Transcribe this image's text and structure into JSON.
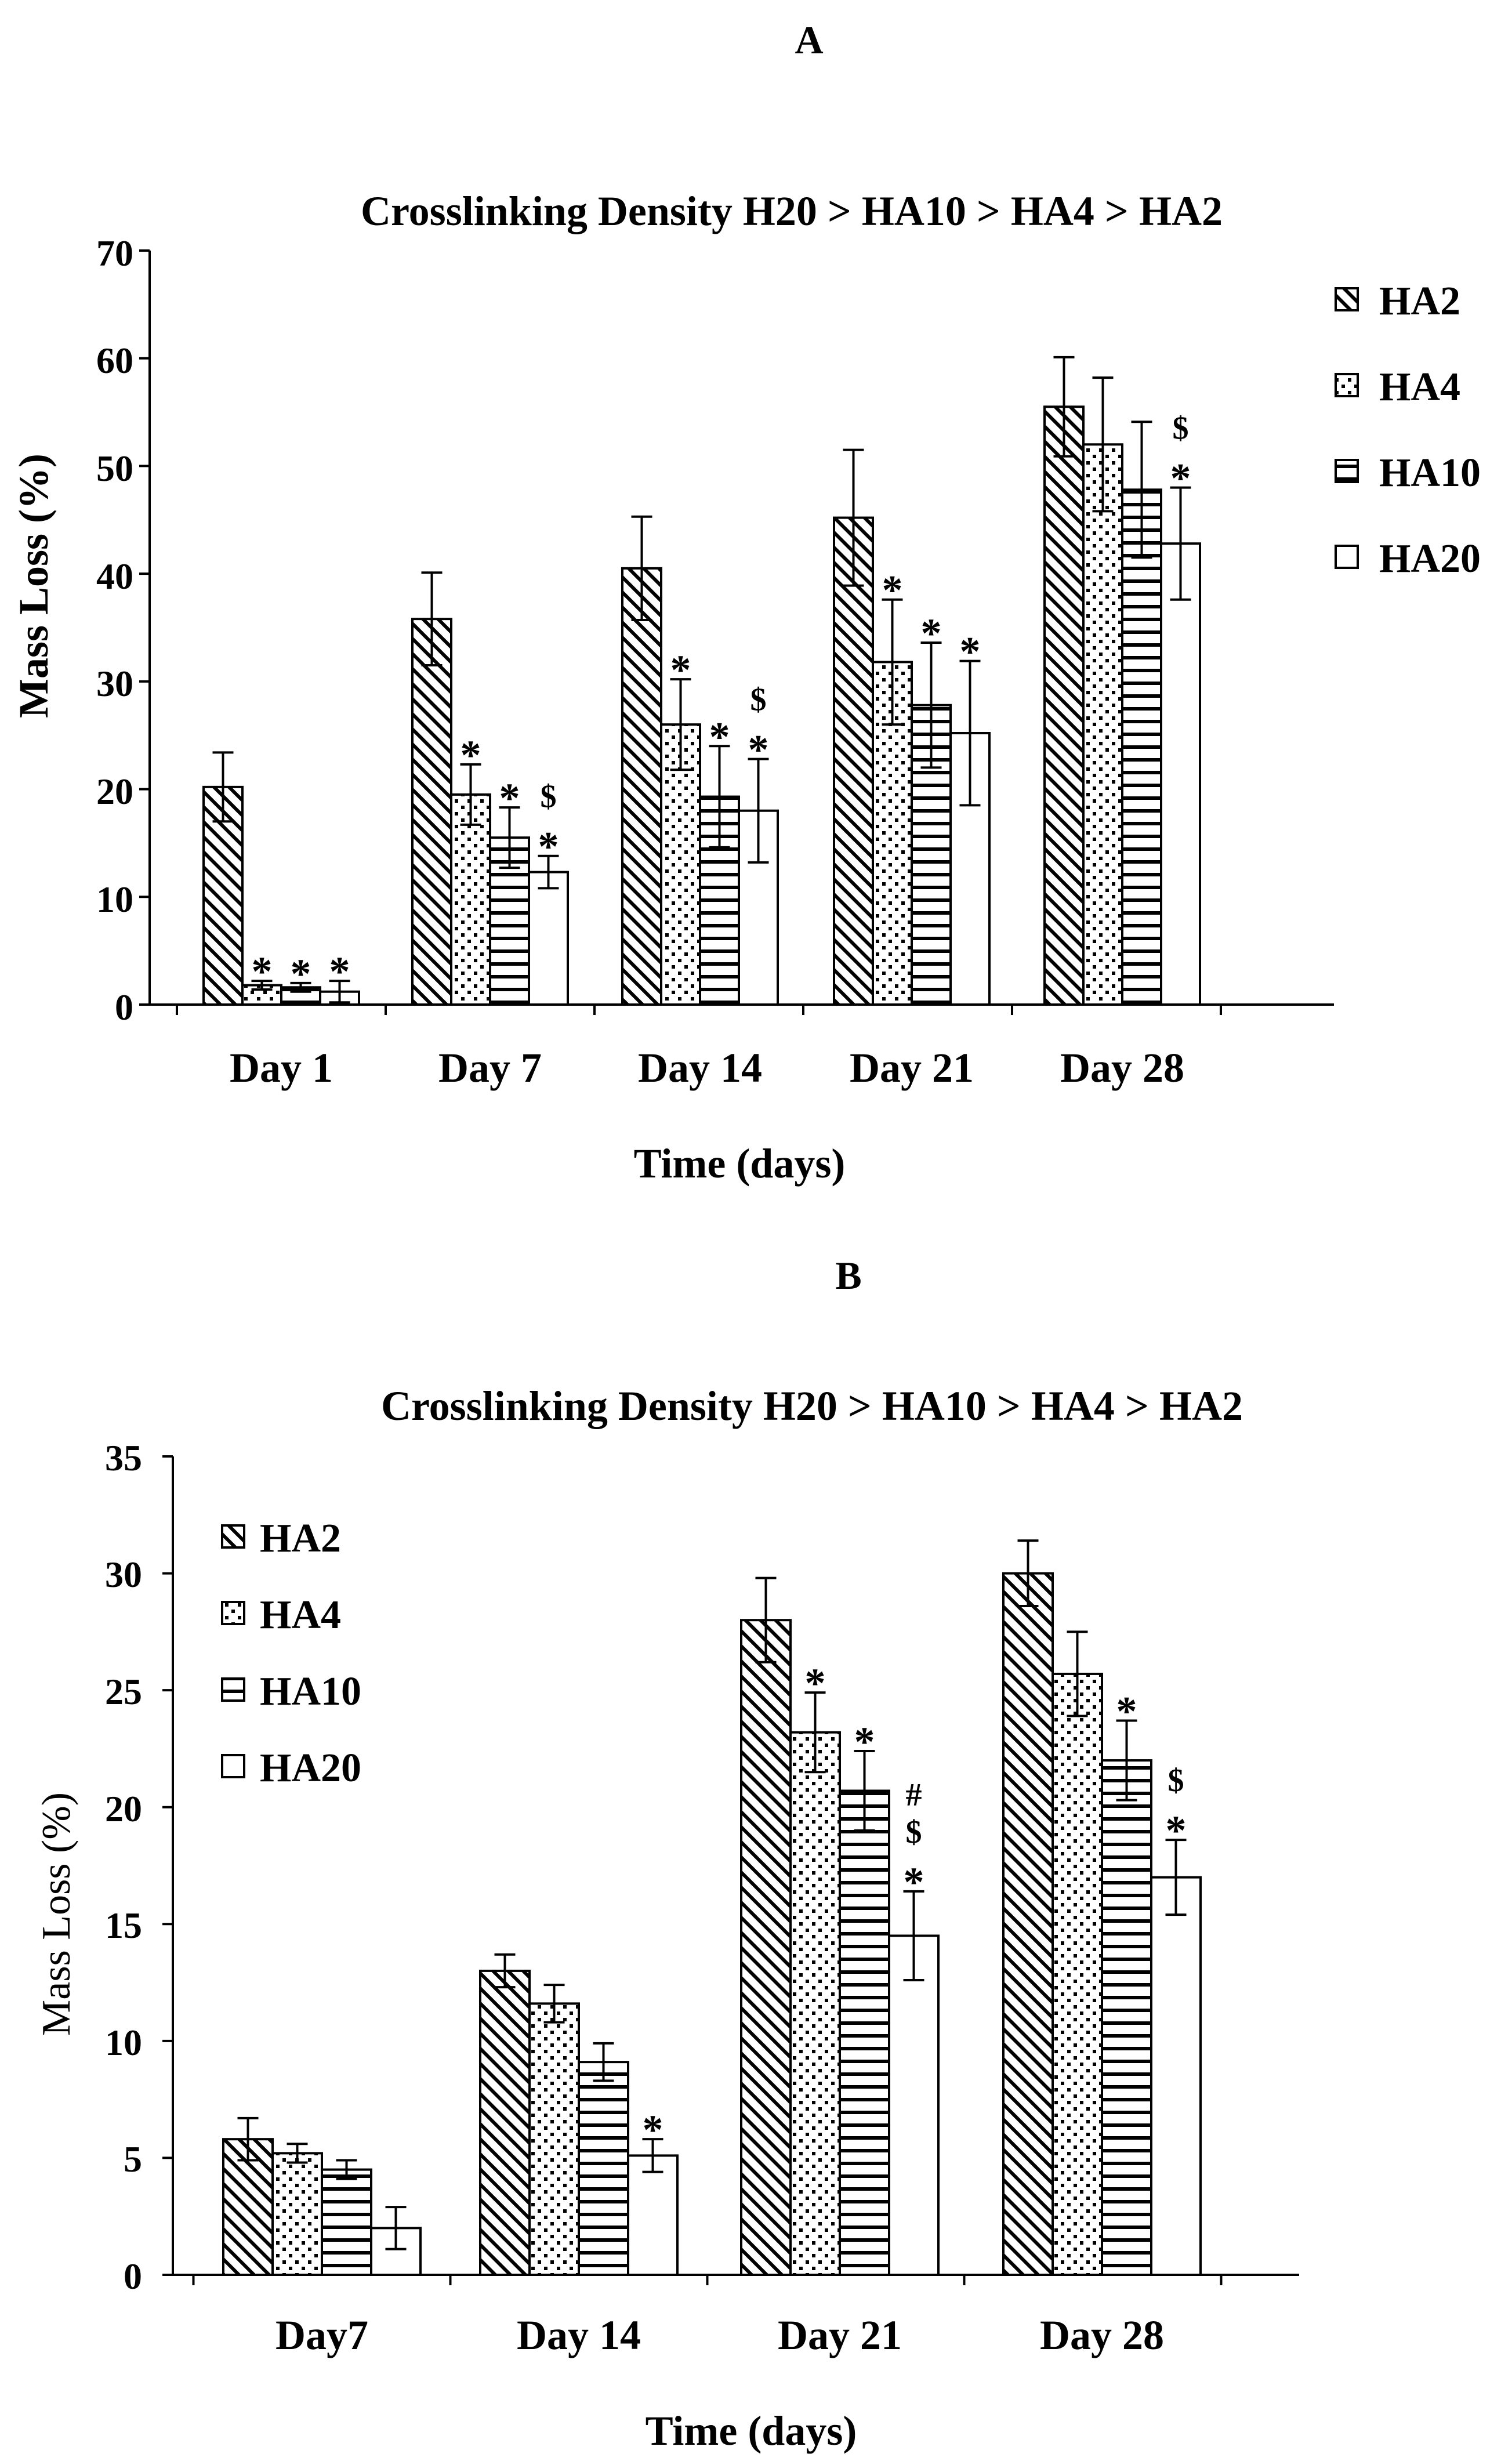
{
  "chart_data": [
    {
      "panel_label": "A",
      "type": "bar",
      "title": "Crosslinking Density H20 > HA10 > HA4 > HA2",
      "xlabel": "Time (days)",
      "ylabel": "Mass Loss (%)",
      "ylim": [
        0,
        70
      ],
      "yticks": [
        "0",
        "10",
        "20",
        "30",
        "40",
        "50",
        "60",
        "70"
      ],
      "ytick_values": [
        0,
        10,
        20,
        30,
        40,
        50,
        60,
        70
      ],
      "categories": [
        "Day 1",
        "Day 7",
        "Day 14",
        "Day 21",
        "Day 28"
      ],
      "legend_position": "top-right",
      "series": [
        {
          "name": "HA2",
          "pattern": "diag",
          "values": [
            20.2,
            35.8,
            40.5,
            45.2,
            55.5
          ],
          "errors": [
            3.2,
            4.3,
            4.8,
            6.3,
            4.6
          ]
        },
        {
          "name": "HA4",
          "pattern": "dots",
          "values": [
            1.8,
            19.5,
            26.0,
            31.8,
            52.0
          ],
          "errors": [
            0.4,
            2.8,
            4.2,
            5.8,
            6.2
          ]
        },
        {
          "name": "HA10",
          "pattern": "hlines",
          "values": [
            1.6,
            15.5,
            19.3,
            27.8,
            47.8
          ],
          "errors": [
            0.4,
            2.8,
            4.7,
            5.8,
            6.3
          ]
        },
        {
          "name": "HA20",
          "pattern": "none",
          "values": [
            1.2,
            12.3,
            18.0,
            25.2,
            42.8
          ],
          "errors": [
            1.0,
            1.5,
            4.8,
            6.7,
            5.2
          ]
        }
      ],
      "annotations": [
        {
          "category": 0,
          "series": 1,
          "text": "*"
        },
        {
          "category": 0,
          "series": 2,
          "text": "*"
        },
        {
          "category": 0,
          "series": 3,
          "text": "*"
        },
        {
          "category": 1,
          "series": 1,
          "text": "*"
        },
        {
          "category": 1,
          "series": 2,
          "text": "*"
        },
        {
          "category": 1,
          "series": 3,
          "text": "* $"
        },
        {
          "category": 2,
          "series": 1,
          "text": "*"
        },
        {
          "category": 2,
          "series": 2,
          "text": "*"
        },
        {
          "category": 2,
          "series": 3,
          "text": "* $"
        },
        {
          "category": 3,
          "series": 1,
          "text": "*"
        },
        {
          "category": 3,
          "series": 2,
          "text": "*"
        },
        {
          "category": 3,
          "series": 3,
          "text": "*"
        },
        {
          "category": 4,
          "series": 3,
          "text": "* $"
        }
      ]
    },
    {
      "panel_label": "B",
      "type": "bar",
      "title": "Crosslinking Density H20 > HA10 > HA4 > HA2",
      "xlabel": "Time (days)",
      "ylabel": "Mass Loss (%)",
      "ylim": [
        0,
        35
      ],
      "yticks": [
        "0",
        "5",
        "10",
        "15",
        "20",
        "25",
        "30",
        "35"
      ],
      "ytick_values": [
        0,
        5,
        10,
        15,
        20,
        25,
        30,
        35
      ],
      "categories": [
        "Day7",
        "Day 14",
        "Day 21",
        "Day 28"
      ],
      "legend_position": "top-left",
      "series": [
        {
          "name": "HA2",
          "pattern": "diag",
          "values": [
            5.8,
            13.0,
            28.0,
            30.0
          ],
          "errors": [
            0.9,
            0.7,
            1.8,
            1.4
          ]
        },
        {
          "name": "HA4",
          "pattern": "dots",
          "values": [
            5.2,
            11.6,
            23.2,
            25.7
          ],
          "errors": [
            0.4,
            0.8,
            1.7,
            1.8
          ]
        },
        {
          "name": "HA10",
          "pattern": "hlines",
          "values": [
            4.5,
            9.1,
            20.7,
            22.0
          ],
          "errors": [
            0.4,
            0.8,
            1.7,
            1.7
          ]
        },
        {
          "name": "HA20",
          "pattern": "none",
          "values": [
            2.0,
            5.1,
            14.5,
            17.0
          ],
          "errors": [
            0.9,
            0.7,
            1.9,
            1.6
          ]
        }
      ],
      "annotations": [
        {
          "category": 1,
          "series": 3,
          "text": "*"
        },
        {
          "category": 2,
          "series": 1,
          "text": "*"
        },
        {
          "category": 2,
          "series": 2,
          "text": "*"
        },
        {
          "category": 2,
          "series": 3,
          "text": "* $ #"
        },
        {
          "category": 3,
          "series": 2,
          "text": "*"
        },
        {
          "category": 3,
          "series": 3,
          "text": "* $"
        }
      ]
    }
  ]
}
